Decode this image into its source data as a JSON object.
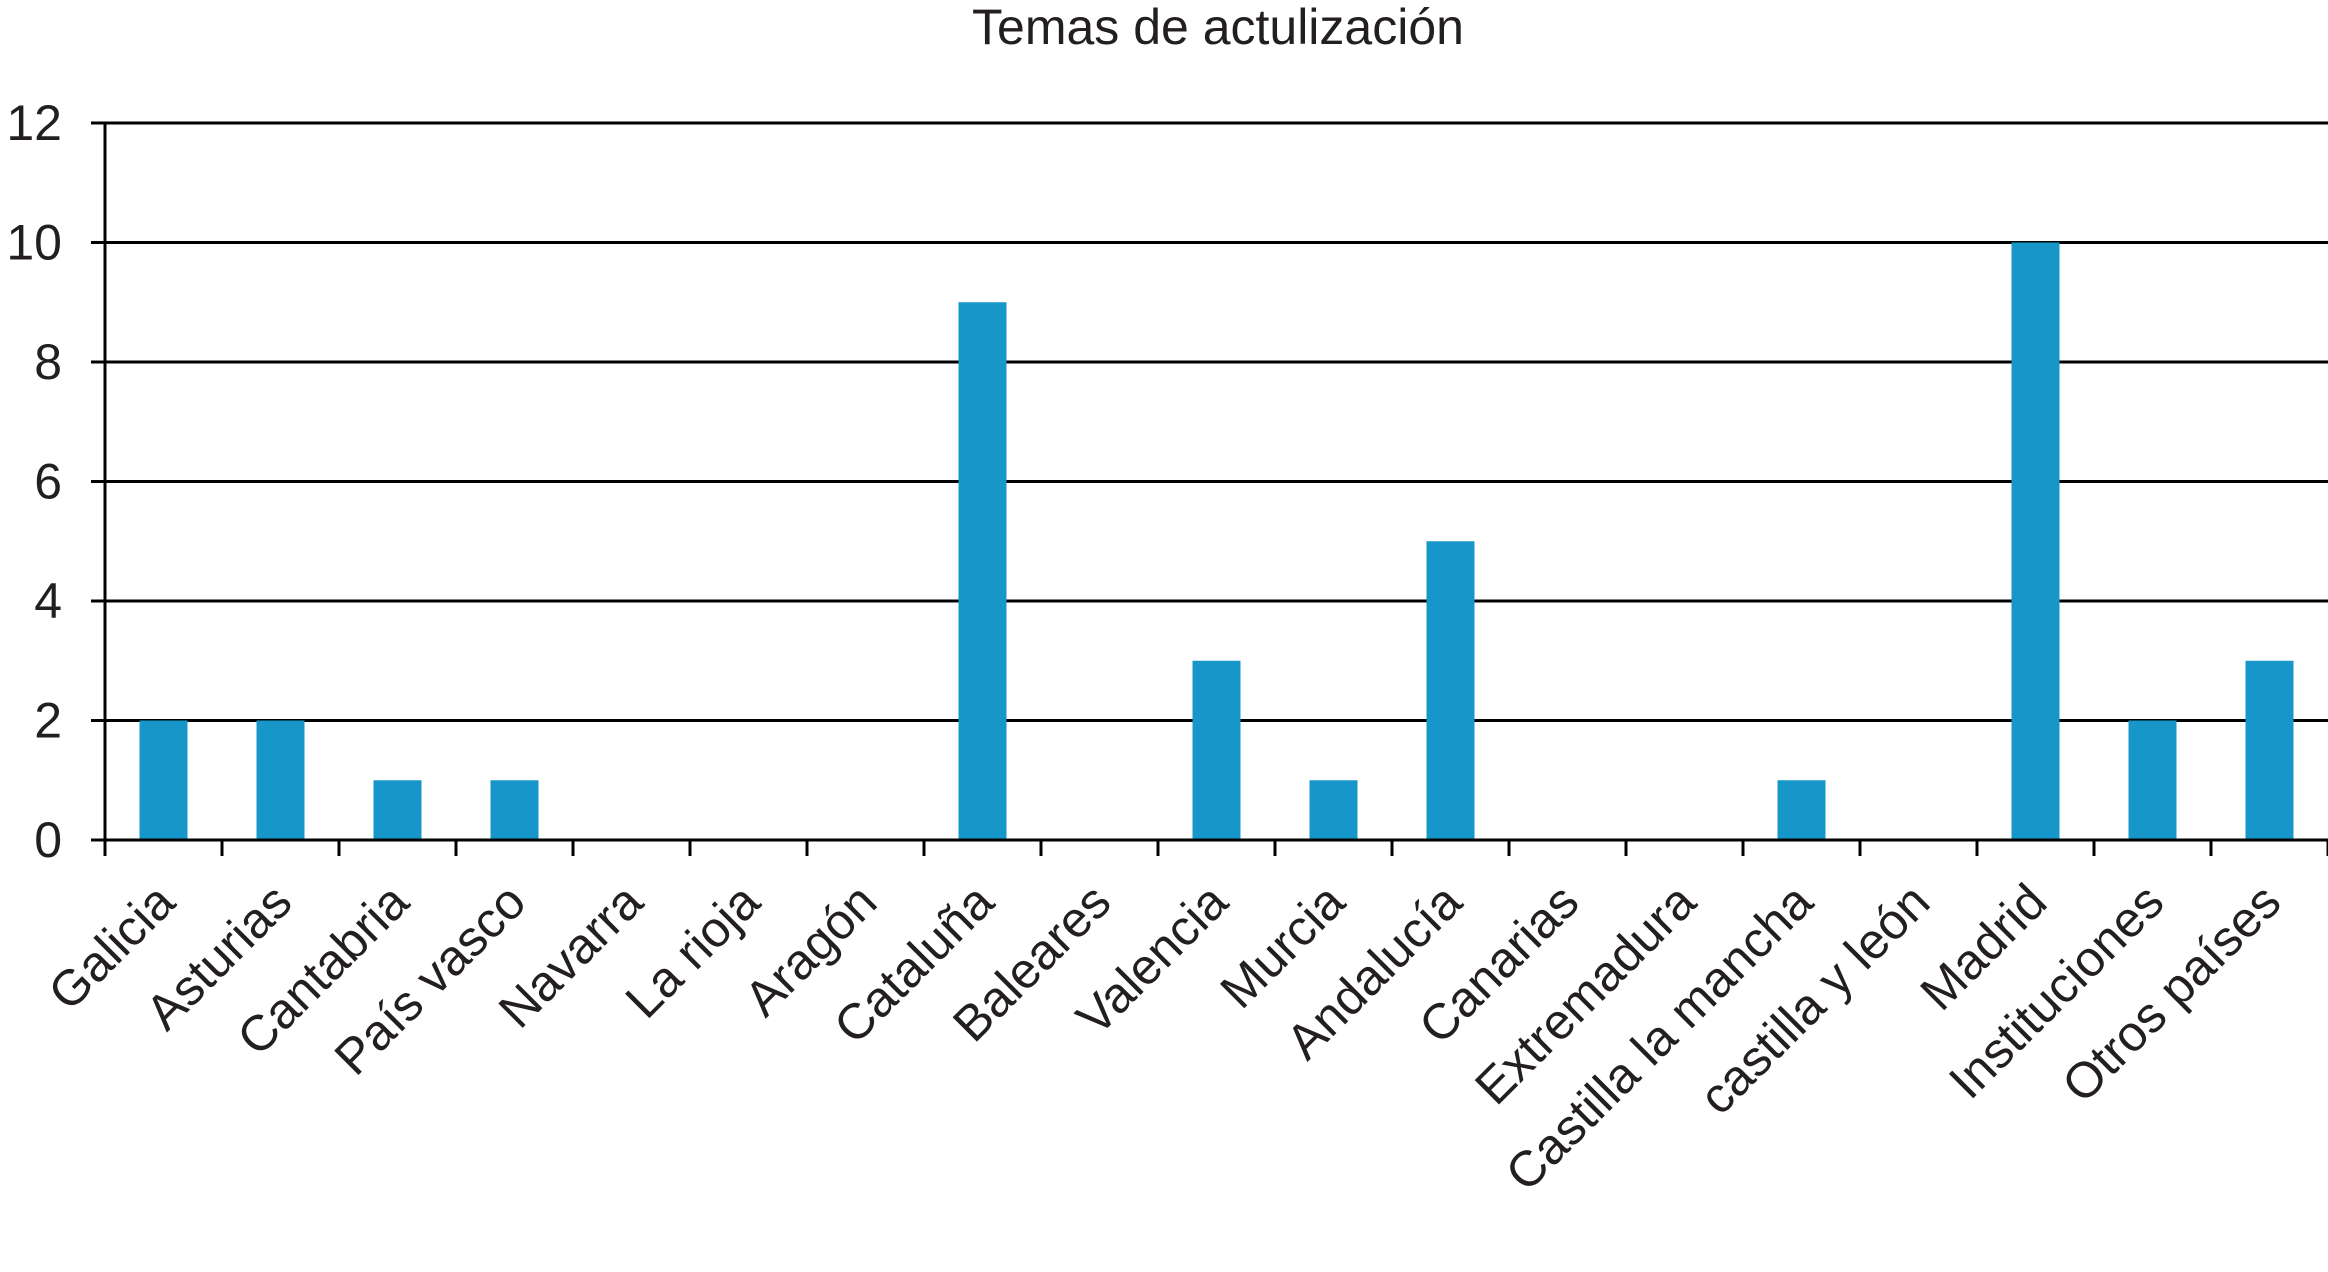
{
  "chart_data": {
    "type": "bar",
    "title": "Temas de actulización",
    "xlabel": "",
    "ylabel": "",
    "categories": [
      "Galicia",
      "Asturias",
      "Cantabria",
      "País vasco",
      "Navarra",
      "La rioja",
      "Aragón",
      "Cataluña",
      "Baleares",
      "Valencia",
      "Murcia",
      "Andalucía",
      "Canarias",
      "Extremadura",
      "Castilla la mancha",
      "castilla y león",
      "Madrid",
      "Instituciones",
      "Otros países"
    ],
    "values": [
      2,
      2,
      1,
      1,
      0,
      0,
      0,
      9,
      0,
      3,
      1,
      5,
      0,
      0,
      1,
      0,
      10,
      2,
      3
    ],
    "ylim": [
      0,
      12
    ],
    "yticks": [
      0,
      2,
      4,
      6,
      8,
      10,
      12
    ],
    "grid": true,
    "legend": "none",
    "bar_color": "#1797c9"
  }
}
